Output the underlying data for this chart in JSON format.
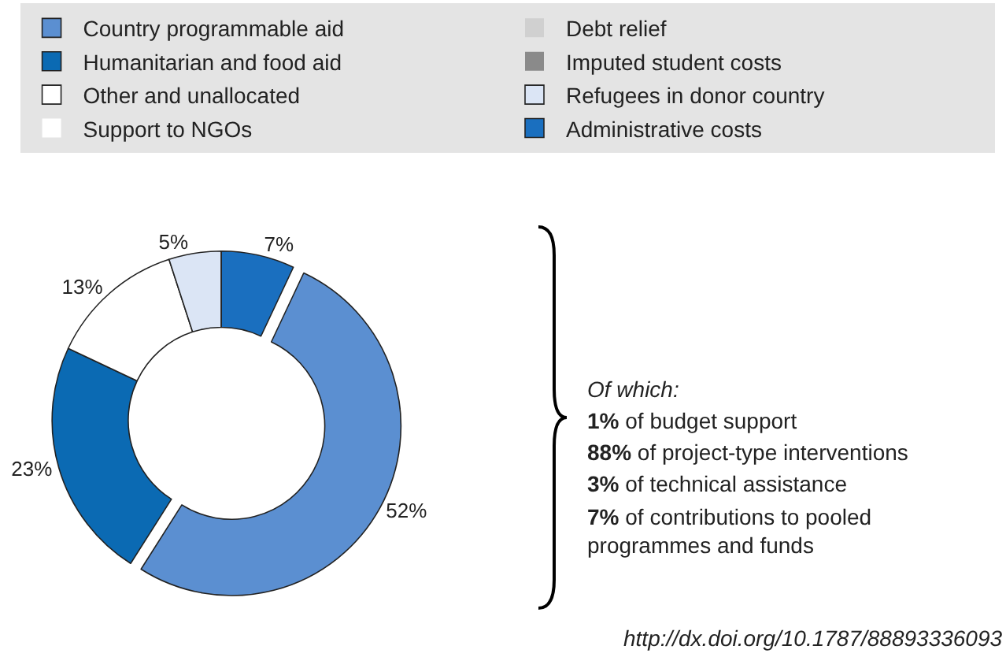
{
  "chart_data": {
    "type": "donut",
    "categories": [
      "Country programmable aid",
      "Debt relief",
      "Humanitarian and food aid",
      "Imputed student costs",
      "Other and unallocated",
      "Refugees in donor country",
      "Support to NGOs",
      "Administrative costs"
    ],
    "values": [
      52,
      0,
      23,
      0,
      13,
      5,
      0,
      7
    ],
    "colors": [
      "#5b8fd1",
      "#d0d0d0",
      "#0b6ab3",
      "#8a8a8a",
      "#ffffff",
      "#dbe5f5",
      "#ffffff",
      "#1a6fbf"
    ],
    "value_labels": [
      "52%",
      null,
      "23%",
      null,
      "13%",
      "5%",
      null,
      "7%"
    ],
    "legend": "top",
    "annotations": [
      "Of which:",
      "1% of budget support",
      "88% of project-type interventions",
      "3% of technical assistance",
      "7% of contributions to pooled programmes and funds",
      "http://dx.doi.org/10.1787/88893336093"
    ]
  }
}
